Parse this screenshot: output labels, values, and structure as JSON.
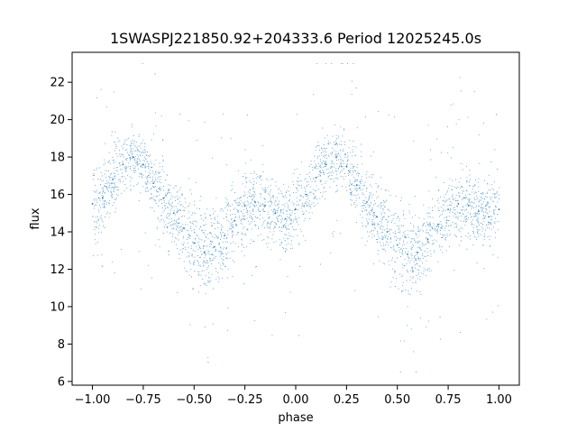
{
  "chart_data": {
    "type": "scatter",
    "title": "1SWASPJ221850.92+204333.6 Period 12025245.0s",
    "xlabel": "phase",
    "ylabel": "flux",
    "xlim": [
      -1.1,
      1.1
    ],
    "ylim": [
      5.8,
      23.6
    ],
    "xticks": [
      -1.0,
      -0.75,
      -0.5,
      -0.25,
      0.0,
      0.25,
      0.5,
      0.75,
      1.0
    ],
    "xtick_labels": [
      "−1.00",
      "−0.75",
      "−0.50",
      "−0.25",
      "0.00",
      "0.25",
      "0.50",
      "0.75",
      "1.00"
    ],
    "yticks": [
      6,
      8,
      10,
      12,
      14,
      16,
      18,
      20,
      22
    ],
    "ytick_labels": [
      "6",
      "8",
      "10",
      "12",
      "14",
      "16",
      "18",
      "20",
      "22"
    ],
    "grid": false,
    "legend": "none",
    "point_color": "#1f77b4",
    "series": [
      {
        "x": [
          -1.0,
          -0.95,
          -0.9,
          -0.85,
          -0.8,
          -0.75,
          -0.7,
          -0.65,
          -0.6,
          -0.55,
          -0.5,
          -0.45,
          -0.4,
          -0.35,
          -0.3,
          -0.25,
          -0.2,
          -0.15,
          -0.1,
          -0.05,
          0.0,
          0.05,
          0.1,
          0.15,
          0.2,
          0.25,
          0.3,
          0.35,
          0.4,
          0.45,
          0.5,
          0.55,
          0.6,
          0.65,
          0.7,
          0.75,
          0.8,
          0.85,
          0.9,
          0.95,
          1.0
        ],
        "y": [
          15.5,
          15.8,
          16.8,
          17.6,
          18.0,
          17.6,
          16.6,
          15.8,
          15.0,
          14.2,
          13.4,
          12.9,
          13.2,
          13.8,
          14.6,
          15.4,
          15.6,
          15.4,
          15.0,
          14.7,
          15.2,
          16.0,
          16.9,
          17.6,
          18.0,
          17.5,
          16.5,
          15.6,
          14.8,
          14.0,
          13.3,
          12.8,
          12.9,
          13.6,
          14.4,
          15.2,
          15.5,
          15.4,
          15.1,
          14.8,
          15.2
        ],
        "spread": [
          1.6,
          1.6,
          1.4,
          1.2,
          1.1,
          1.2,
          1.4,
          1.5,
          1.5,
          1.6,
          1.8,
          1.8,
          1.7,
          1.6,
          1.5,
          1.5,
          1.5,
          1.4,
          1.4,
          1.4,
          1.5,
          1.4,
          1.3,
          1.2,
          1.1,
          1.2,
          1.4,
          1.5,
          1.6,
          1.7,
          1.8,
          1.8,
          1.7,
          1.6,
          1.5,
          1.5,
          1.5,
          1.4,
          1.4,
          1.4,
          1.6
        ]
      }
    ]
  }
}
